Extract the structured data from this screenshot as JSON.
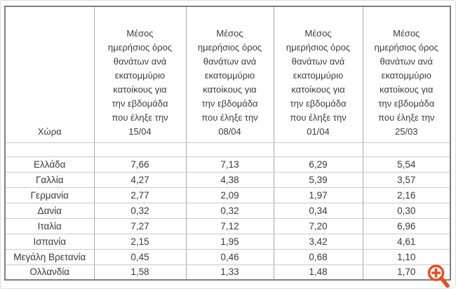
{
  "ui": {
    "table": {
      "country_header": "Χώρα",
      "column_header_lines": "Μέσος\nημερήσιος όρος\nθανάτων ανά\nεκατομμύριο\nκατοίκους για\nτην εβδομάδα\nπου έληξε την",
      "column_dates": [
        "15/04",
        "08/04",
        "01/04",
        "25/03"
      ],
      "rows": [
        {
          "country": "Ελλάδα",
          "values": [
            "7,66",
            "7,13",
            "6,29",
            "5,54"
          ]
        },
        {
          "country": "Γαλλία",
          "values": [
            "4,27",
            "4,38",
            "5,39",
            "3,57"
          ]
        },
        {
          "country": "Γερμανία",
          "values": [
            "2,77",
            "2,09",
            "1,97",
            "2,16"
          ]
        },
        {
          "country": "Δανία",
          "values": [
            "0,32",
            "0,32",
            "0,34",
            "0,30"
          ]
        },
        {
          "country": "Ιταλία",
          "values": [
            "7,27",
            "7,12",
            "7,20",
            "6,96"
          ]
        },
        {
          "country": "Ισπανία",
          "values": [
            "2,15",
            "1,95",
            "3,42",
            "4,61"
          ]
        },
        {
          "country": "Μεγάλη Βρετανία",
          "values": [
            "0,45",
            "0,46",
            "0,68",
            "1,10"
          ]
        },
        {
          "country": "Ολλανδία",
          "values": [
            "1,58",
            "1,33",
            "1,48",
            "1,70"
          ]
        }
      ]
    },
    "icons": {
      "zoom_icon": "zoom-in-icon"
    }
  },
  "chart_data": {
    "type": "table",
    "columns": [
      "Χώρα",
      "Μέσος ημερήσιος όρος θανάτων ανά εκατομμύριο κατοίκους για την εβδομάδα που έληξε την 15/04",
      "Μέσος ημερήσιος όρος θανάτων ανά εκατομμύριο κατοίκους για την εβδομάδα που έληξε την 08/04",
      "Μέσος ημερήσιος όρος θανάτων ανά εκατομμύριο κατοίκους για την εβδομάδα που έληξε την 01/04",
      "Μέσος ημερήσιος όρος θανάτων ανά εκατομμύριο κατοίκους για την εβδομάδα που έληξε την 25/03"
    ],
    "rows": [
      [
        "Ελλάδα",
        7.66,
        7.13,
        6.29,
        5.54
      ],
      [
        "Γαλλία",
        4.27,
        4.38,
        5.39,
        3.57
      ],
      [
        "Γερμανία",
        2.77,
        2.09,
        1.97,
        2.16
      ],
      [
        "Δανία",
        0.32,
        0.32,
        0.34,
        0.3
      ],
      [
        "Ιταλία",
        7.27,
        7.12,
        7.2,
        6.96
      ],
      [
        "Ισπανία",
        2.15,
        1.95,
        3.42,
        4.61
      ],
      [
        "Μεγάλη Βρετανία",
        0.45,
        0.46,
        0.68,
        1.1
      ],
      [
        "Ολλανδία",
        1.58,
        1.33,
        1.48,
        1.7
      ]
    ]
  },
  "colors": {
    "table_text": "#3d3d3d",
    "outer_border": "#7f7f7f",
    "column_border": "#a8a8a8",
    "row_border": "#c9c9c9",
    "zoom_icon": "#e84e20",
    "background": "#ffffff"
  }
}
